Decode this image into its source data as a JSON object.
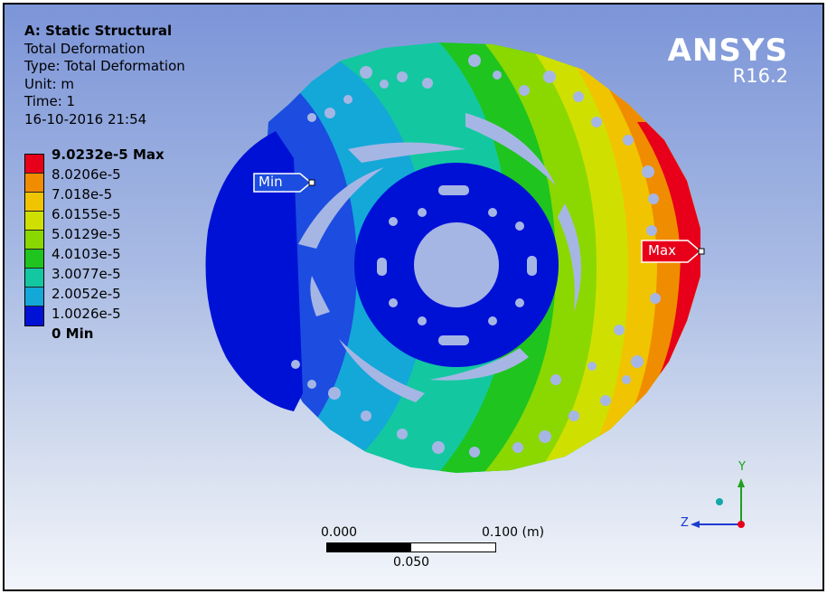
{
  "info": {
    "title": "A: Static Structural",
    "result": "Total Deformation",
    "type": "Type: Total Deformation",
    "unit": "Unit: m",
    "time": "Time: 1",
    "timestamp": "16-10-2016 21:54"
  },
  "legend": {
    "labels": [
      "9.0232e-5 Max",
      "8.0206e-5",
      "7.018e-5",
      "6.0155e-5",
      "5.0129e-5",
      "4.0103e-5",
      "3.0077e-5",
      "2.0052e-5",
      "1.0026e-5",
      "0 Min"
    ],
    "colors": [
      "#e8001a",
      "#f08c00",
      "#f0c400",
      "#cfe000",
      "#8ad800",
      "#1fc41f",
      "#13c8a0",
      "#13a8d8",
      "#1d4ce0",
      "#0011d6"
    ]
  },
  "brand": {
    "name": "ANSYS",
    "version": "R16.2"
  },
  "probes": {
    "min_label": "Min",
    "max_label": "Max"
  },
  "scale_bar": {
    "left_label": "0.000",
    "right_label": "0.100 (m)",
    "mid_label": "0.050"
  },
  "triad": {
    "y_label": "Y",
    "z_label": "Z"
  }
}
